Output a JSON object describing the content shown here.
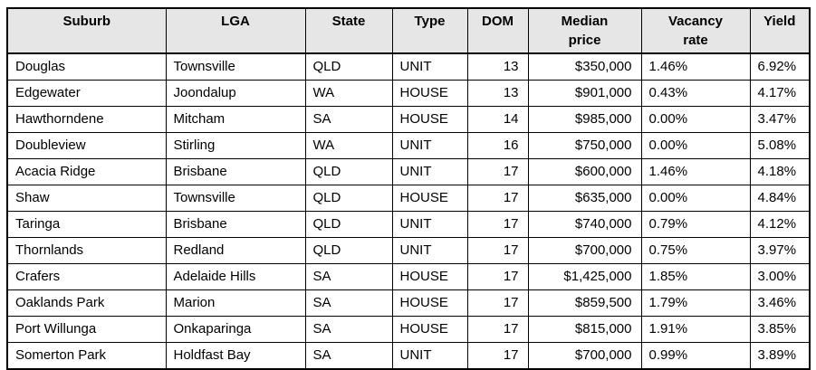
{
  "colors": {
    "header_bg": "#E7E6E6",
    "border": "#000000",
    "text": "#000000"
  },
  "header_labels": [
    "Suburb",
    "LGA",
    "State",
    "Type",
    "DOM",
    "Median\nprice",
    "Vacancy\nrate",
    "Yield"
  ],
  "chart_data": {
    "type": "table",
    "title": "",
    "columns": [
      "Suburb",
      "LGA",
      "State",
      "Type",
      "DOM",
      "Median price",
      "Vacancy rate",
      "Yield"
    ],
    "rows": [
      [
        "Douglas",
        "Townsville",
        "QLD",
        "UNIT",
        "13",
        "$350,000",
        "1.46%",
        "6.92%"
      ],
      [
        "Edgewater",
        "Joondalup",
        "WA",
        "HOUSE",
        "13",
        "$901,000",
        "0.43%",
        "4.17%"
      ],
      [
        "Hawthorndene",
        "Mitcham",
        "SA",
        "HOUSE",
        "14",
        "$985,000",
        "0.00%",
        "3.47%"
      ],
      [
        "Doubleview",
        "Stirling",
        "WA",
        "UNIT",
        "16",
        "$750,000",
        "0.00%",
        "5.08%"
      ],
      [
        "Acacia Ridge",
        "Brisbane",
        "QLD",
        "UNIT",
        "17",
        "$600,000",
        "1.46%",
        "4.18%"
      ],
      [
        "Shaw",
        "Townsville",
        "QLD",
        "HOUSE",
        "17",
        "$635,000",
        "0.00%",
        "4.84%"
      ],
      [
        "Taringa",
        "Brisbane",
        "QLD",
        "UNIT",
        "17",
        "$740,000",
        "0.79%",
        "4.12%"
      ],
      [
        "Thornlands",
        "Redland",
        "QLD",
        "UNIT",
        "17",
        "$700,000",
        "0.75%",
        "3.97%"
      ],
      [
        "Crafers",
        "Adelaide Hills",
        "SA",
        "HOUSE",
        "17",
        "$1,425,000",
        "1.85%",
        "3.00%"
      ],
      [
        "Oaklands Park",
        "Marion",
        "SA",
        "HOUSE",
        "17",
        "$859,500",
        "1.79%",
        "3.46%"
      ],
      [
        "Port Willunga",
        "Onkaparinga",
        "SA",
        "HOUSE",
        "17",
        "$815,000",
        "1.91%",
        "3.85%"
      ],
      [
        "Somerton Park",
        "Holdfast Bay",
        "SA",
        "UNIT",
        "17",
        "$700,000",
        "0.99%",
        "3.89%"
      ]
    ]
  }
}
